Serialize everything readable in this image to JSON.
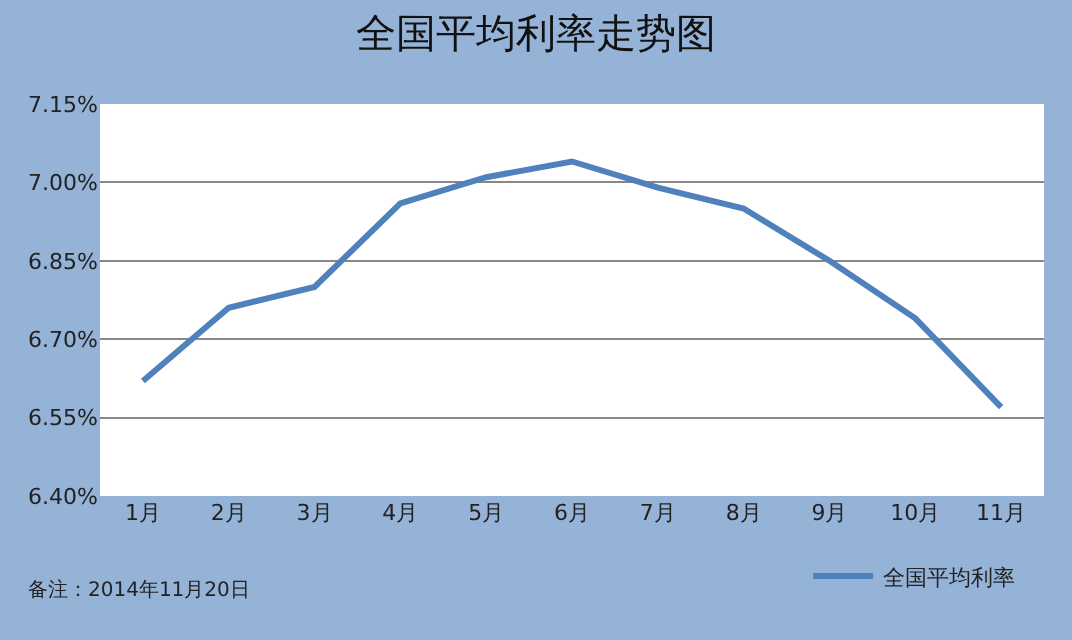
{
  "chart_data": {
    "type": "line",
    "title": "全国平均利率走势图",
    "categories": [
      "1月",
      "2月",
      "3月",
      "4月",
      "5月",
      "6月",
      "7月",
      "8月",
      "9月",
      "10月",
      "11月"
    ],
    "series": [
      {
        "name": "全国平均利率",
        "color": "#4f81bd",
        "values": [
          6.62,
          6.76,
          6.8,
          6.96,
          7.01,
          7.04,
          6.99,
          6.95,
          6.85,
          6.74,
          6.57
        ]
      }
    ],
    "ylim": [
      6.4,
      7.15
    ],
    "yticks": [
      {
        "value": 6.4,
        "label": "6.40%"
      },
      {
        "value": 6.55,
        "label": "6.55%"
      },
      {
        "value": 6.7,
        "label": "6.70%"
      },
      {
        "value": 6.85,
        "label": "6.85%"
      },
      {
        "value": 7.0,
        "label": "7.00%"
      },
      {
        "value": 7.15,
        "label": "7.15%"
      }
    ],
    "grid": "y",
    "legend": "bottom",
    "marker": "none",
    "line_style": "solid",
    "annotations": [
      "备注：2014年11月20日"
    ]
  }
}
